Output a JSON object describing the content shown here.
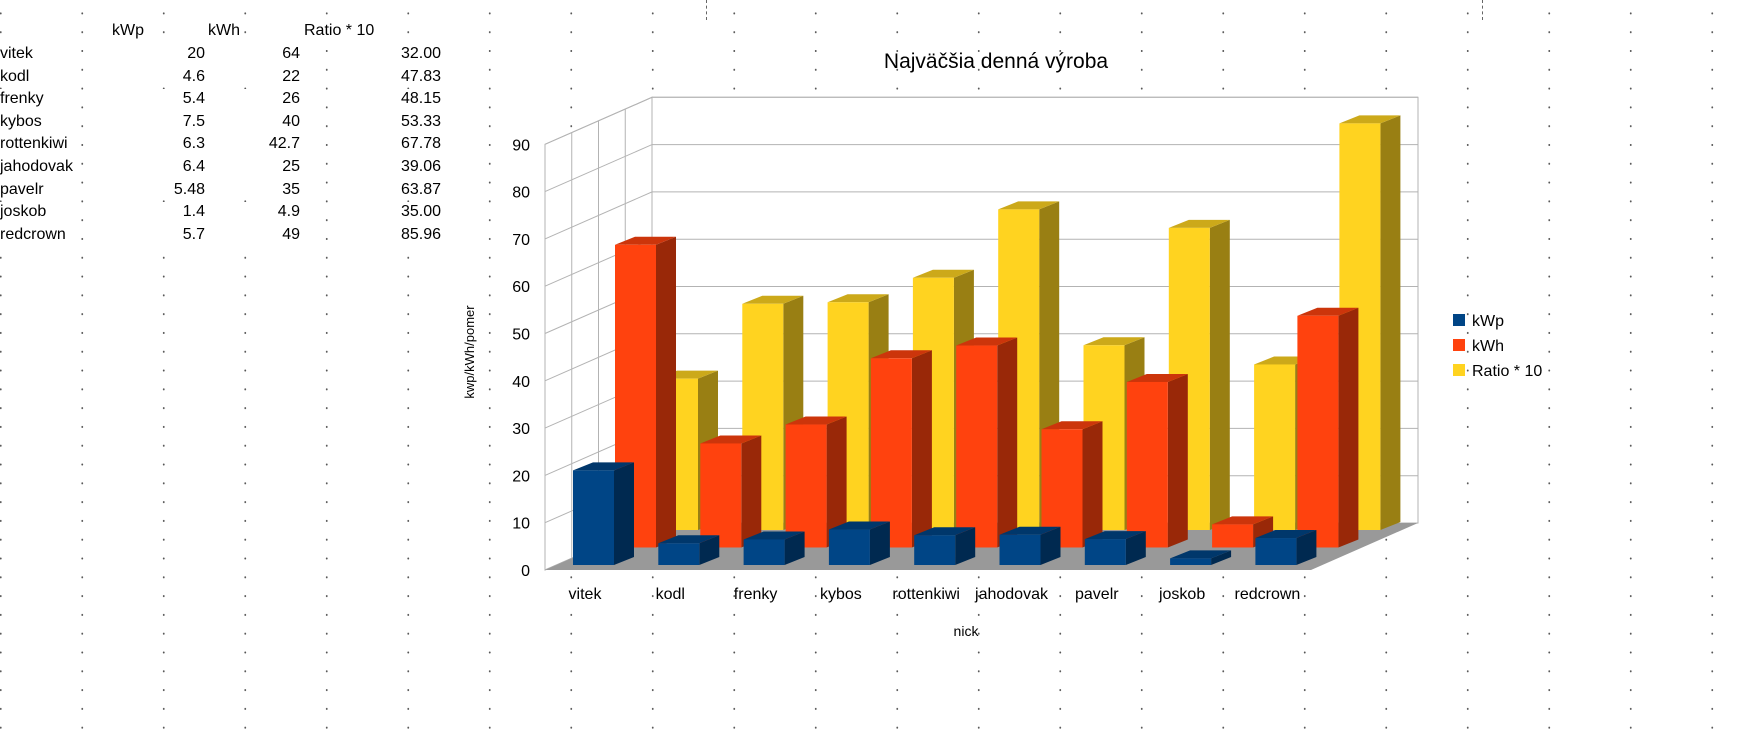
{
  "table": {
    "headers": [
      "kWp",
      "kWh",
      "Ratio * 10"
    ],
    "rows": [
      {
        "nick": "vitek",
        "kWp": "20",
        "kWh": "64",
        "ratio": "32.00"
      },
      {
        "nick": "kodl",
        "kWp": "4.6",
        "kWh": "22",
        "ratio": "47.83"
      },
      {
        "nick": "frenky",
        "kWp": "5.4",
        "kWh": "26",
        "ratio": "48.15"
      },
      {
        "nick": "kybos",
        "kWp": "7.5",
        "kWh": "40",
        "ratio": "53.33"
      },
      {
        "nick": "rottenkiwi",
        "kWp": "6.3",
        "kWh": "42.7",
        "ratio": "67.78"
      },
      {
        "nick": "jahodovak",
        "kWp": "6.4",
        "kWh": "25",
        "ratio": "39.06"
      },
      {
        "nick": "pavelr",
        "kWp": "5.48",
        "kWh": "35",
        "ratio": "63.87"
      },
      {
        "nick": "joskob",
        "kWp": "1.4",
        "kWh": "4.9",
        "ratio": "35.00"
      },
      {
        "nick": "redcrown",
        "kWp": "5.7",
        "kWh": "49",
        "ratio": "85.96"
      }
    ]
  },
  "chart_data": {
    "type": "bar",
    "style": "3d-deep",
    "title": "Najväčšia denná výroba",
    "xlabel": "nick",
    "ylabel": "kwp/kWh/pomer",
    "categories": [
      "vitek",
      "kodl",
      "frenky",
      "kybos",
      "rottenkiwi",
      "jahodovak",
      "pavelr",
      "joskob",
      "redcrown"
    ],
    "series": [
      {
        "name": "kWp",
        "values": [
          20,
          4.6,
          5.4,
          7.5,
          6.3,
          6.4,
          5.48,
          1.4,
          5.7
        ],
        "color": "#004586"
      },
      {
        "name": "kWh",
        "values": [
          64,
          22,
          26,
          40,
          42.7,
          25,
          35,
          4.9,
          49
        ],
        "color": "#ff420e"
      },
      {
        "name": "Ratio * 10",
        "values": [
          32.0,
          47.83,
          48.15,
          53.33,
          67.78,
          39.06,
          63.87,
          35.0,
          85.96
        ],
        "color": "#ffd320"
      }
    ],
    "yticks": [
      0,
      10,
      20,
      30,
      40,
      50,
      60,
      70,
      80,
      90
    ],
    "ylim": [
      0,
      90
    ],
    "grid": true,
    "legend": "right"
  }
}
